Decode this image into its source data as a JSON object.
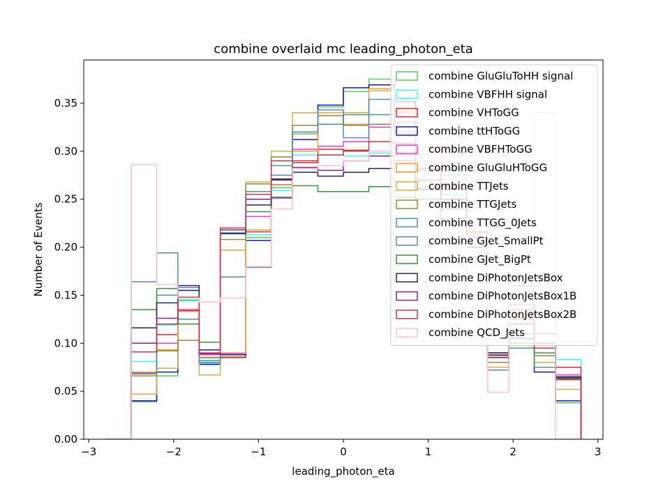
{
  "chart_data": {
    "type": "step-histogram",
    "title": "combine overlaid mc leading_photon_eta",
    "xlabel": "leading_photon_eta",
    "ylabel": "Number of Events",
    "xlim": [
      -3.06,
      3.06
    ],
    "ylim": [
      0,
      0.395
    ],
    "xticks": [
      -3,
      -2,
      -1,
      0,
      1,
      2,
      3
    ],
    "yticks": [
      0.0,
      0.05,
      0.1,
      0.15,
      0.2,
      0.25,
      0.3,
      0.35
    ],
    "bin_edges": [
      -2.8,
      -2.5,
      -2.2,
      -1.95,
      -1.7,
      -1.45,
      -1.15,
      -0.85,
      -0.6,
      -0.3,
      0,
      0.3,
      0.6,
      0.85,
      1.15,
      1.45,
      1.7,
      1.95,
      2.25,
      2.5,
      2.8
    ],
    "legend_position": "upper right",
    "grid": false,
    "series": [
      {
        "name": "combine GluGluToHH signal",
        "color": "#55cc55",
        "values": [
          0,
          0.039,
          0.066,
          0.145,
          0.08,
          0.086,
          0.21,
          0.262,
          0.318,
          0.346,
          0.362,
          0.375,
          0.35,
          0.3,
          0.275,
          0.21,
          0.085,
          0.095,
          0.075,
          0.038,
          0
        ]
      },
      {
        "name": "combine VBFHH signal",
        "color": "#33ffff",
        "values": [
          0,
          0.081,
          0.119,
          0.144,
          0.079,
          0.088,
          0.213,
          0.259,
          0.296,
          0.296,
          0.295,
          0.298,
          0.29,
          0.27,
          0.255,
          0.21,
          0.08,
          0.12,
          0.1,
          0.083,
          0
        ]
      },
      {
        "name": "combine VHToGG",
        "color": "#ee2222",
        "values": [
          0,
          0.069,
          0.109,
          0.134,
          0.085,
          0.085,
          0.216,
          0.252,
          0.288,
          0.302,
          0.301,
          0.3,
          0.296,
          0.282,
          0.26,
          0.216,
          0.087,
          0.135,
          0.11,
          0.075,
          0
        ]
      },
      {
        "name": "combine ttHToGG",
        "color": "#1111cc",
        "values": [
          0,
          0.04,
          0.07,
          0.155,
          0.078,
          0.088,
          0.207,
          0.265,
          0.312,
          0.348,
          0.366,
          0.369,
          0.352,
          0.3,
          0.27,
          0.2,
          0.075,
          0.105,
          0.07,
          0.04,
          0
        ]
      },
      {
        "name": "combine VBFHToGG",
        "color": "#ee33ee",
        "values": [
          0,
          0.069,
          0.1,
          0.135,
          0.088,
          0.089,
          0.232,
          0.251,
          0.302,
          0.305,
          0.31,
          0.325,
          0.33,
          0.3,
          0.27,
          0.21,
          0.09,
          0.14,
          0.11,
          0.067,
          0
        ]
      },
      {
        "name": "combine GluGluHToGG",
        "color": "#ff9922",
        "values": [
          0,
          0.07,
          0.093,
          0.133,
          0.085,
          0.09,
          0.218,
          0.265,
          0.3,
          0.34,
          0.34,
          0.365,
          0.34,
          0.3,
          0.27,
          0.215,
          0.085,
          0.13,
          0.1,
          0.065,
          0
        ]
      },
      {
        "name": "combine TTJets",
        "color": "#ddaa44",
        "values": [
          0,
          0.047,
          0.074,
          0.133,
          0.067,
          0.197,
          0.268,
          0.3,
          0.34,
          0.34,
          0.328,
          0.363,
          0.342,
          0.268,
          0.262,
          0.2,
          0.075,
          0.095,
          0.08,
          0.052,
          0
        ]
      },
      {
        "name": "combine TTGJets",
        "color": "#998833",
        "values": [
          0,
          0.066,
          0.092,
          0.103,
          0.085,
          0.208,
          0.266,
          0.294,
          0.327,
          0.337,
          0.327,
          0.328,
          0.33,
          0.262,
          0.25,
          0.19,
          0.08,
          0.1,
          0.087,
          0.064,
          0
        ]
      },
      {
        "name": "combine TTGG_0Jets",
        "color": "#44998a",
        "values": [
          0,
          0.068,
          0.15,
          0.125,
          0.08,
          0.215,
          0.258,
          0.285,
          0.32,
          0.328,
          0.338,
          0.338,
          0.32,
          0.25,
          0.24,
          0.2,
          0.087,
          0.095,
          0.075,
          0.063,
          0
        ]
      },
      {
        "name": "combine GJet_SmallPt",
        "color": "#5588bb",
        "values": [
          0,
          0.164,
          0.194,
          0.158,
          0.082,
          0.169,
          0.179,
          0.275,
          0.32,
          0.343,
          0.314,
          0.354,
          0.32,
          0.25,
          0.24,
          0.15,
          0.072,
          0.16,
          0.13,
          0.065,
          0
        ]
      },
      {
        "name": "combine GJet_BigPt",
        "color": "#339933",
        "values": [
          0,
          0.135,
          0.157,
          0.12,
          0.101,
          0.214,
          0.237,
          0.252,
          0.264,
          0.258,
          0.258,
          0.263,
          0.252,
          0.25,
          0.23,
          0.19,
          0.09,
          0.11,
          0.09,
          0.063,
          0
        ]
      },
      {
        "name": "combine DiPhotonJetsBox",
        "color": "#222266",
        "values": [
          0,
          0.116,
          0.142,
          0.16,
          0.093,
          0.214,
          0.244,
          0.271,
          0.278,
          0.274,
          0.278,
          0.282,
          0.278,
          0.26,
          0.25,
          0.2,
          0.09,
          0.12,
          0.1,
          0.065,
          0
        ]
      },
      {
        "name": "combine DiPhotonJetsBox1B",
        "color": "#882288",
        "values": [
          0,
          0.1,
          0.126,
          0.148,
          0.089,
          0.218,
          0.25,
          0.27,
          0.283,
          0.28,
          0.29,
          0.295,
          0.29,
          0.27,
          0.26,
          0.21,
          0.085,
          0.12,
          0.1,
          0.064,
          0
        ]
      },
      {
        "name": "combine DiPhotonJetsBox2B",
        "color": "#cc3344",
        "values": [
          0,
          0.091,
          0.12,
          0.148,
          0.09,
          0.22,
          0.255,
          0.29,
          0.29,
          0.296,
          0.3,
          0.31,
          0.308,
          0.28,
          0.26,
          0.21,
          0.088,
          0.125,
          0.095,
          0.062,
          0
        ]
      },
      {
        "name": "combine QCD_Jets",
        "color": "#ffc0cb",
        "values": [
          0,
          0.286,
          0.161,
          0.147,
          0.143,
          0.147,
          0.18,
          0.24,
          0.282,
          0.285,
          0.29,
          0.3,
          0.16,
          0.16,
          0.17,
          0.213,
          0.049,
          0.19,
          0.34,
          0.0,
          0
        ]
      }
    ]
  }
}
